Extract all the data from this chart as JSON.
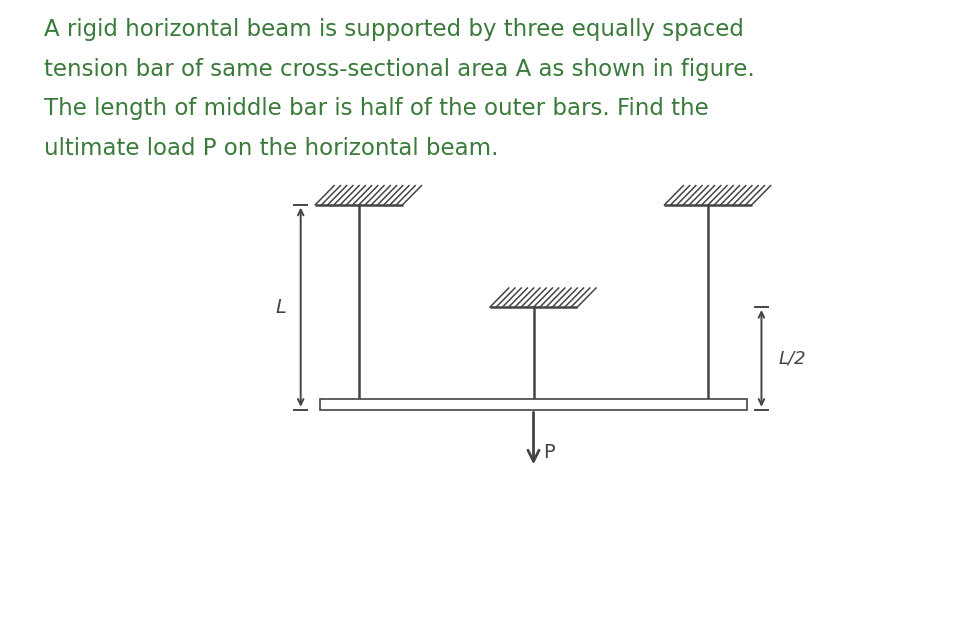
{
  "text_line1": "A rigid horizontal beam is supported by three equally spaced",
  "text_line2": "tension bar of same cross-sectional area A as shown in figure.",
  "text_line3": "The length of middle bar is half of the outer bars. Find the",
  "text_line4": "ultimate load P on the horizontal beam.",
  "text_color": "#3a7a3a",
  "text_fontsize": 16.5,
  "bg_color": "#ffffff",
  "diagram_color": "#444444",
  "label_L": "L",
  "label_L2": "L/2",
  "label_P": "P",
  "fig_width": 9.7,
  "fig_height": 6.4
}
